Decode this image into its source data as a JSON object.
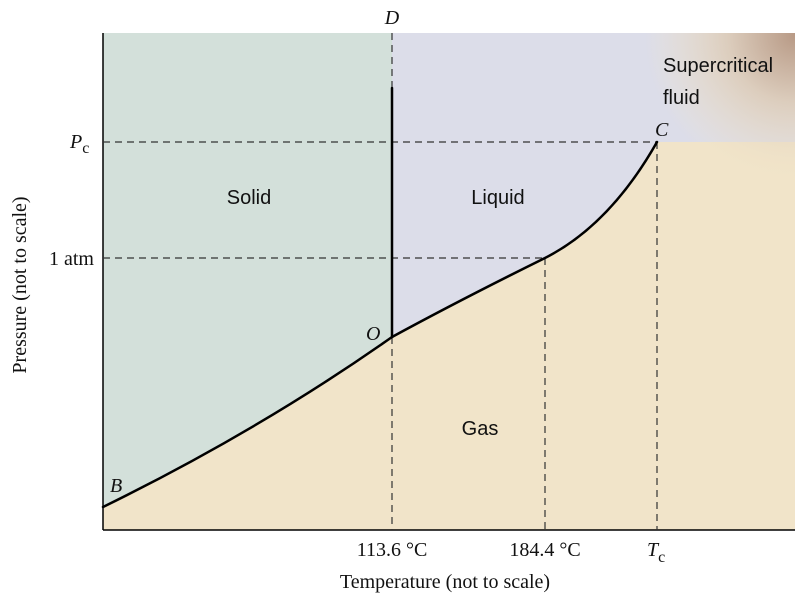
{
  "diagram": {
    "regions": {
      "solid": "Solid",
      "liquid": "Liquid",
      "gas": "Gas",
      "supercritical_line1": "Supercritical",
      "supercritical_line2": "fluid"
    },
    "points": {
      "top": "D",
      "triple": "O",
      "critical": "C",
      "start": "B"
    },
    "pressure_labels": {
      "critical_main": "P",
      "critical_sub": "c",
      "one_atm": "1 atm"
    },
    "temperature_labels": {
      "triple_temp": "113.6 °C",
      "boiling_temp": "184.4 °C",
      "critical_main": "T",
      "critical_sub": "c"
    },
    "axes": {
      "x_title": "Temperature (not to scale)",
      "y_title": "Pressure (not to scale)"
    },
    "colors": {
      "solid": "#d3e0da",
      "liquid": "#dcdde9",
      "gas": "#f1e4c9",
      "supercritical": "#b89a86",
      "line": "#000000"
    }
  }
}
